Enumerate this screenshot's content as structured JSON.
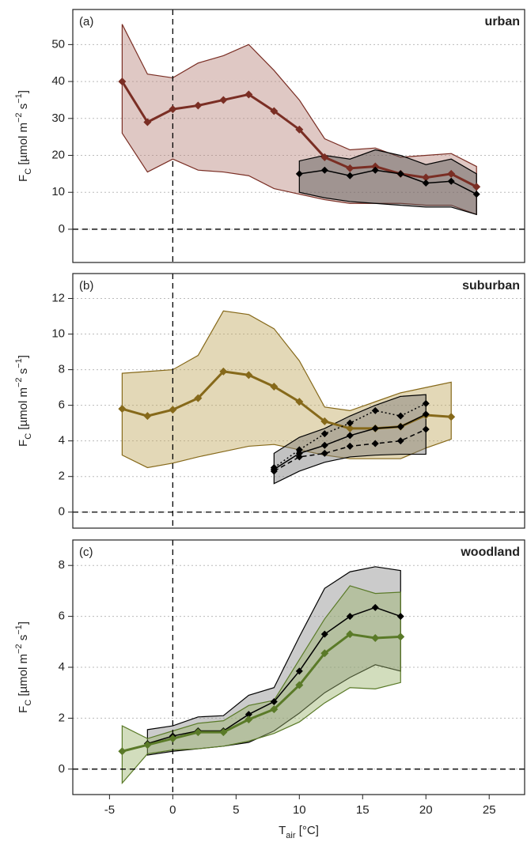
{
  "chart_data": [
    {
      "type": "line",
      "label": "(a)",
      "title": "urban",
      "ylabel": [
        [
          "F",
          ""
        ],
        [
          "C",
          "sub"
        ],
        [
          " [µmol m",
          ""
        ],
        [
          "−2",
          "sup"
        ],
        [
          " s",
          ""
        ],
        [
          "−1",
          "sup"
        ],
        [
          "]",
          ""
        ]
      ],
      "xlim": [
        -7.9,
        27.8
      ],
      "ylim": [
        -9,
        59.5
      ],
      "yticks": [
        0,
        10,
        20,
        30,
        40,
        50
      ],
      "grid": true,
      "reference_lines": {
        "x": 0,
        "y": 0
      },
      "series": [
        {
          "color": "#7a2e24",
          "fill": "#b8847c",
          "dash": "solid",
          "width": 3,
          "x": [
            -4,
            -2,
            0,
            2,
            4,
            6,
            8,
            10,
            12,
            14,
            16,
            18,
            20,
            22,
            24
          ],
          "values": [
            40,
            29,
            32.5,
            33.5,
            35,
            36.5,
            32,
            27,
            19.5,
            16.5,
            17,
            15,
            14,
            15,
            11.5
          ],
          "upper": [
            55.5,
            42,
            41,
            45,
            47,
            50,
            43,
            35,
            24.5,
            21.5,
            22,
            19.5,
            20,
            20.5,
            17
          ],
          "lower": [
            26,
            15.5,
            19,
            16,
            15.5,
            14.5,
            11,
            9.5,
            8,
            7,
            7,
            7,
            6.5,
            6.5,
            4
          ]
        },
        {
          "color": "#000000",
          "fill": "#555555",
          "dash": "solid",
          "width": 1.5,
          "x": [
            10,
            12,
            14,
            16,
            18,
            20,
            22,
            24
          ],
          "values": [
            15,
            16,
            14.5,
            16,
            15,
            12.5,
            13,
            9.5
          ],
          "upper": [
            18.5,
            20,
            19,
            21.5,
            20,
            17.5,
            19,
            15
          ],
          "lower": [
            10,
            8.5,
            7.5,
            7,
            6.5,
            6,
            6,
            4
          ]
        }
      ]
    },
    {
      "type": "line",
      "label": "(b)",
      "title": "suburban",
      "ylabel": [
        [
          "F",
          ""
        ],
        [
          "C",
          "sub"
        ],
        [
          " [µmol m",
          ""
        ],
        [
          "−2",
          "sup"
        ],
        [
          " s",
          ""
        ],
        [
          "−1",
          "sup"
        ],
        [
          "]",
          ""
        ]
      ],
      "xlim": [
        -7.9,
        27.8
      ],
      "ylim": [
        -0.9,
        13.4
      ],
      "yticks": [
        0,
        2,
        4,
        6,
        8,
        10,
        12
      ],
      "grid": true,
      "reference_lines": {
        "x": 0,
        "y": 0
      },
      "series": [
        {
          "color": "#86691a",
          "fill": "#c2a860",
          "dash": "solid",
          "width": 3,
          "x": [
            -4,
            -2,
            0,
            2,
            4,
            6,
            8,
            10,
            12,
            14,
            16,
            18,
            20,
            22
          ],
          "values": [
            5.8,
            5.4,
            5.75,
            6.4,
            7.9,
            7.7,
            7.05,
            6.2,
            5.1,
            4.7,
            4.7,
            4.8,
            5.45,
            5.35
          ],
          "upper": [
            7.8,
            7.9,
            8.0,
            8.8,
            11.3,
            11.1,
            10.3,
            8.5,
            5.9,
            5.7,
            6.2,
            6.7,
            7.0,
            7.3
          ],
          "lower": [
            3.2,
            2.5,
            2.75,
            3.1,
            3.4,
            3.7,
            3.8,
            3.5,
            3.2,
            3.0,
            3.0,
            3.0,
            3.6,
            4.1
          ]
        },
        {
          "color": "#000000",
          "fill": "#777777",
          "dash": "solid",
          "width": 1.5,
          "x": [
            8,
            10,
            12,
            14,
            16,
            18,
            20
          ],
          "values": [
            2.4,
            3.3,
            3.75,
            4.3,
            4.7,
            4.8,
            5.5
          ],
          "upper": [
            3.3,
            4.2,
            4.7,
            5.4,
            6.0,
            6.5,
            6.6
          ],
          "lower": [
            1.6,
            2.3,
            2.8,
            3.1,
            3.2,
            3.25,
            3.25
          ]
        },
        {
          "color": "#000000",
          "dash": "dotted",
          "width": 1.5,
          "x": [
            8,
            10,
            12,
            14,
            16,
            18,
            20
          ],
          "values": [
            2.5,
            3.5,
            4.4,
            5.0,
            5.7,
            5.4,
            6.1
          ]
        },
        {
          "color": "#000000",
          "dash": "dashed",
          "width": 1.5,
          "x": [
            8,
            10,
            12,
            14,
            16,
            18,
            20
          ],
          "values": [
            2.3,
            3.1,
            3.3,
            3.7,
            3.85,
            4.0,
            4.65
          ]
        }
      ]
    },
    {
      "type": "line",
      "label": "(c)",
      "title": "woodland",
      "ylabel": [
        [
          "F",
          ""
        ],
        [
          "C",
          "sub"
        ],
        [
          " [µmol m",
          ""
        ],
        [
          "−2",
          "sup"
        ],
        [
          " s",
          ""
        ],
        [
          "−1",
          "sup"
        ],
        [
          "]",
          ""
        ]
      ],
      "xlabel": [
        [
          "T",
          ""
        ],
        [
          "air",
          "sub"
        ],
        [
          " [°C]",
          ""
        ]
      ],
      "xlim": [
        -7.9,
        27.8
      ],
      "xticks": [
        -5,
        0,
        5,
        10,
        15,
        20,
        25
      ],
      "ylim": [
        -1,
        9
      ],
      "yticks": [
        0,
        2,
        4,
        6,
        8
      ],
      "grid": true,
      "reference_lines": {
        "x": 0,
        "y": 0
      },
      "series": [
        {
          "color": "#000000",
          "fill": "#8c8c8c",
          "dash": "solid",
          "width": 1.5,
          "x": [
            -2,
            0,
            2,
            4,
            6,
            8,
            10,
            12,
            14,
            16,
            18
          ],
          "values": [
            1.0,
            1.3,
            1.5,
            1.5,
            2.15,
            2.65,
            3.85,
            5.3,
            6.0,
            6.35,
            6.0
          ],
          "upper": [
            1.55,
            1.7,
            2.05,
            2.1,
            2.9,
            3.2,
            5.2,
            7.1,
            7.75,
            7.95,
            7.8
          ],
          "lower": [
            0.55,
            0.7,
            0.8,
            0.9,
            1.05,
            1.5,
            2.2,
            3.0,
            3.6,
            4.1,
            3.85
          ]
        },
        {
          "color": "#5a7a28",
          "fill": "#9cb46c",
          "dash": "solid",
          "width": 3,
          "x": [
            -4,
            -2,
            0,
            2,
            4,
            6,
            8,
            10,
            12,
            14,
            16,
            18
          ],
          "values": [
            0.7,
            0.95,
            1.2,
            1.45,
            1.45,
            1.95,
            2.35,
            3.3,
            4.55,
            5.3,
            5.15,
            5.2
          ],
          "upper": [
            1.7,
            1.2,
            1.5,
            1.8,
            1.9,
            2.5,
            2.7,
            4.3,
            5.9,
            7.2,
            6.9,
            6.95
          ],
          "lower": [
            -0.55,
            0.6,
            0.75,
            0.8,
            0.9,
            1.1,
            1.4,
            1.85,
            2.6,
            3.2,
            3.15,
            3.4
          ]
        }
      ]
    }
  ]
}
